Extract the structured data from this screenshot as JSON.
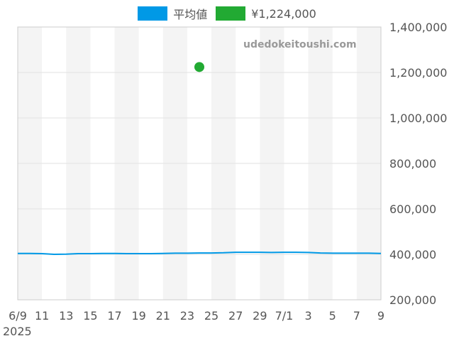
{
  "legend": [
    {
      "label": "平均値",
      "color": "#0099e6",
      "kind": "line"
    },
    {
      "label": "¥1,224,000",
      "color": "#22aa33",
      "kind": "point"
    }
  ],
  "watermark": "udedokeitoushi.com",
  "year_label": "2025",
  "chart_data": {
    "type": "line",
    "x_tick_labels": [
      "6/9",
      "11",
      "13",
      "15",
      "17",
      "19",
      "21",
      "23",
      "25",
      "27",
      "29",
      "7/1",
      "3",
      "5",
      "7",
      "9"
    ],
    "y_tick_labels": [
      "1,400,000",
      "1,200,000",
      "1,000,000",
      "800,000",
      "600,000",
      "400,000",
      "200,000"
    ],
    "ylim": [
      200000,
      1400000
    ],
    "grid": true,
    "alternating_column_shading": true,
    "series": [
      {
        "name": "平均値",
        "color": "#0099e6",
        "x": [
          "2025-06-09",
          "2025-06-10",
          "2025-06-11",
          "2025-06-12",
          "2025-06-13",
          "2025-06-14",
          "2025-06-15",
          "2025-06-16",
          "2025-06-17",
          "2025-06-18",
          "2025-06-19",
          "2025-06-20",
          "2025-06-21",
          "2025-06-22",
          "2025-06-23",
          "2025-06-24",
          "2025-06-25",
          "2025-06-26",
          "2025-06-27",
          "2025-06-28",
          "2025-06-29",
          "2025-06-30",
          "2025-07-01",
          "2025-07-02",
          "2025-07-03",
          "2025-07-04",
          "2025-07-05",
          "2025-07-06",
          "2025-07-07",
          "2025-07-08",
          "2025-07-09"
        ],
        "values": [
          404000,
          404000,
          403000,
          400000,
          401000,
          403000,
          403000,
          404000,
          404000,
          403000,
          403000,
          403000,
          404000,
          405000,
          405000,
          406000,
          406000,
          407000,
          409000,
          409000,
          409000,
          408000,
          409000,
          409000,
          408000,
          406000,
          405000,
          405000,
          405000,
          405000,
          404000
        ]
      },
      {
        "name": "¥1,224,000",
        "color": "#22aa33",
        "x": [
          "2025-06-24"
        ],
        "values": [
          1224000
        ]
      }
    ]
  }
}
